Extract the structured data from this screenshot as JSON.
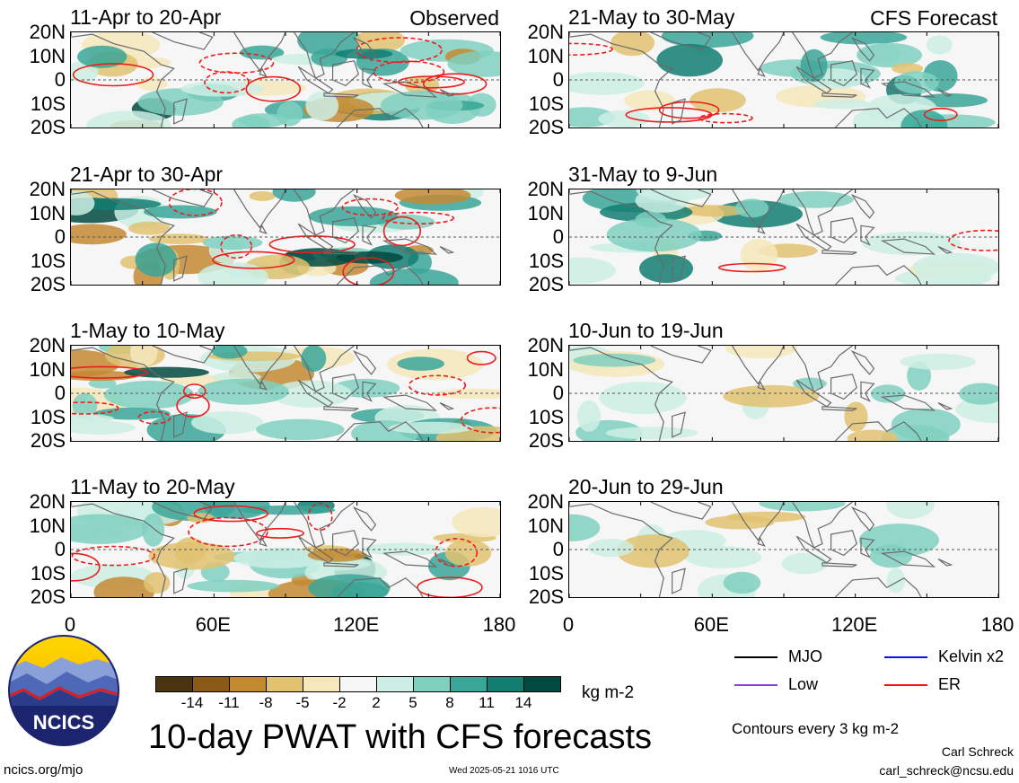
{
  "panels": [
    {
      "title": "11-Apr to 20-Apr",
      "tag": "Observed",
      "col": 0,
      "row": 0
    },
    {
      "title": "21-Apr to 30-Apr",
      "tag": "",
      "col": 0,
      "row": 1
    },
    {
      "title": "1-May to 10-May",
      "tag": "",
      "col": 0,
      "row": 2
    },
    {
      "title": "11-May to 20-May",
      "tag": "",
      "col": 0,
      "row": 3
    },
    {
      "title": "21-May to 30-May",
      "tag": "CFS Forecast",
      "col": 1,
      "row": 0
    },
    {
      "title": "31-May to 9-Jun",
      "tag": "",
      "col": 1,
      "row": 1
    },
    {
      "title": "10-Jun to 19-Jun",
      "tag": "",
      "col": 1,
      "row": 2
    },
    {
      "title": "20-Jun to 29-Jun",
      "tag": "",
      "col": 1,
      "row": 3
    }
  ],
  "y_ticks": [
    "20N",
    "10N",
    "0",
    "10S",
    "20S"
  ],
  "x_ticks": [
    "0",
    "60E",
    "120E",
    "180"
  ],
  "colorbar": {
    "unit": "kg m-2",
    "labels": [
      "-14",
      "-11",
      "-8",
      "-5",
      "-2",
      "2",
      "5",
      "8",
      "11",
      "14"
    ],
    "colors": [
      "#4a3410",
      "#8a5a16",
      "#c38a32",
      "#e0c270",
      "#f6e8bc",
      "#f7f7f7",
      "#cdeee4",
      "#7fd0bf",
      "#3aa698",
      "#127e72",
      "#014a40"
    ]
  },
  "legend": [
    {
      "label": "MJO",
      "color": "#000000"
    },
    {
      "label": "Kelvin x2",
      "color": "#1010ff"
    },
    {
      "label": "Low",
      "color": "#9040d0"
    },
    {
      "label": "ER",
      "color": "#ff1010"
    }
  ],
  "contour_note": "Contours every 3 kg m-2",
  "main_title": "10-day PWAT with CFS forecasts",
  "logo_text": "NCICS",
  "url": "ncics.org/mjo",
  "timestamp": "Wed 2025-05-21 1016 UTC",
  "author": "Carl Schreck",
  "email": "carl_schreck@ncsu.edu"
}
